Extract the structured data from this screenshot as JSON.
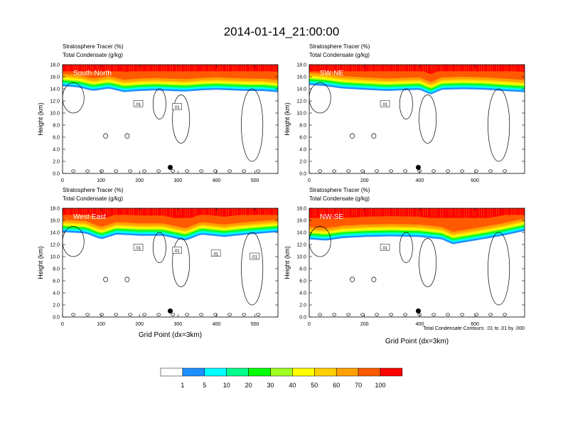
{
  "figure": {
    "title": "2014-01-14_21:00:00",
    "contour_note": "Total Condensate Contours: .01 to .01 by .000"
  },
  "colors": {
    "scale": [
      "#ffffff",
      "#1e8fff",
      "#00ffff",
      "#00ff8c",
      "#00ff00",
      "#a0ff20",
      "#ffff00",
      "#ffd000",
      "#ffa000",
      "#ff5a00",
      "#ff0000"
    ],
    "line": "#000000"
  },
  "chart_data": [
    {
      "type": "heatmap",
      "panel": "South-North",
      "subtitle_1": "Stratosphere Tracer   (%)",
      "subtitle_2": "Total Condensate   (g/kg)",
      "label": "South-North",
      "ylabel": "Height (km)",
      "xlabel": "",
      "xlim": [
        0,
        560
      ],
      "ylim": [
        0,
        18
      ],
      "xticks": [
        0,
        100,
        200,
        300,
        400,
        500
      ],
      "xtick_labels": [
        "0",
        "100",
        "200",
        "300",
        "400",
        "500"
      ],
      "yticks": [
        0,
        2,
        4,
        6,
        8,
        10,
        12,
        14,
        16,
        18
      ],
      "ytick_labels": [
        "0.0",
        "2.0",
        "4.0",
        "6.0",
        "8.0",
        "10.0",
        "12.0",
        "14.0",
        "16.0",
        "18.0"
      ],
      "tropopause_km": [
        [
          0,
          15.6
        ],
        [
          40,
          15.4
        ],
        [
          80,
          14.8
        ],
        [
          120,
          15.2
        ],
        [
          160,
          14.6
        ],
        [
          200,
          14.8
        ],
        [
          240,
          14.9
        ],
        [
          280,
          14.8
        ],
        [
          320,
          14.7
        ],
        [
          360,
          14.9
        ],
        [
          400,
          15.0
        ],
        [
          440,
          14.9
        ],
        [
          480,
          14.8
        ],
        [
          520,
          14.8
        ],
        [
          560,
          14.6
        ]
      ],
      "marker_x": 280,
      "contour_labels": [
        ".01",
        ".01"
      ]
    },
    {
      "type": "heatmap",
      "panel": "SW-NE",
      "subtitle_1": "Stratosphere Tracer   (%)",
      "subtitle_2": "Total Condensate   (g/kg)",
      "label": "SW-NE",
      "ylabel": "Height (km)",
      "xlabel": "",
      "xlim": [
        0,
        780
      ],
      "ylim": [
        0,
        18
      ],
      "xticks": [
        0,
        200,
        400,
        600
      ],
      "xtick_labels": [
        "0",
        "200",
        "400",
        "600"
      ],
      "yticks": [
        0,
        2,
        4,
        6,
        8,
        10,
        12,
        14,
        16,
        18
      ],
      "ytick_labels": [
        "0.0",
        "2.0",
        "4.0",
        "6.0",
        "8.0",
        "10.0",
        "12.0",
        "14.0",
        "16.0",
        "18.0"
      ],
      "tropopause_km": [
        [
          0,
          15.8
        ],
        [
          60,
          15.6
        ],
        [
          120,
          15.2
        ],
        [
          200,
          15.0
        ],
        [
          280,
          14.8
        ],
        [
          340,
          14.9
        ],
        [
          400,
          15.0
        ],
        [
          440,
          14.2
        ],
        [
          480,
          15.0
        ],
        [
          560,
          15.1
        ],
        [
          640,
          15.0
        ],
        [
          700,
          14.8
        ],
        [
          780,
          14.6
        ]
      ],
      "marker_x": 395,
      "contour_labels": [
        ".01"
      ]
    },
    {
      "type": "heatmap",
      "panel": "West-East",
      "subtitle_1": "Stratosphere Tracer   (%)",
      "subtitle_2": "Total Condensate   (g/kg)",
      "label": "West-East",
      "ylabel": "Height (km)",
      "xlabel": "Grid Point (dx=3km)",
      "xlim": [
        0,
        560
      ],
      "ylim": [
        0,
        18
      ],
      "xticks": [
        0,
        100,
        200,
        300,
        400,
        500
      ],
      "xtick_labels": [
        "0",
        "100",
        "200",
        "300",
        "400",
        "500"
      ],
      "yticks": [
        0,
        2,
        4,
        6,
        8,
        10,
        12,
        14,
        16,
        18
      ],
      "ytick_labels": [
        "0.0",
        "2.0",
        "4.0",
        "6.0",
        "8.0",
        "10.0",
        "12.0",
        "14.0",
        "16.0",
        "18.0"
      ],
      "tropopause_km": [
        [
          0,
          15.2
        ],
        [
          60,
          15.0
        ],
        [
          100,
          14.0
        ],
        [
          140,
          14.8
        ],
        [
          200,
          14.6
        ],
        [
          260,
          14.6
        ],
        [
          320,
          13.8
        ],
        [
          360,
          14.8
        ],
        [
          420,
          14.4
        ],
        [
          480,
          14.8
        ],
        [
          560,
          15.2
        ]
      ],
      "marker_x": 280,
      "contour_labels": [
        ".01",
        ".01",
        ".01",
        ".01"
      ]
    },
    {
      "type": "heatmap",
      "panel": "NW-SE",
      "subtitle_1": "Stratosphere Tracer   (%)",
      "subtitle_2": "Total Condensate   (g/kg)",
      "label": "NW-SE",
      "ylabel": "Height (km)",
      "xlabel": "Grid Point (dx=3km)",
      "xlim": [
        0,
        780
      ],
      "ylim": [
        0,
        18
      ],
      "xticks": [
        0,
        200,
        400,
        600
      ],
      "xtick_labels": [
        "0",
        "200",
        "400",
        "600"
      ],
      "yticks": [
        0,
        2,
        4,
        6,
        8,
        10,
        12,
        14,
        16,
        18
      ],
      "ytick_labels": [
        "0.0",
        "2.0",
        "4.0",
        "6.0",
        "8.0",
        "10.0",
        "12.0",
        "14.0",
        "16.0",
        "18.0"
      ],
      "tropopause_km": [
        [
          0,
          14.0
        ],
        [
          60,
          13.8
        ],
        [
          120,
          14.2
        ],
        [
          200,
          14.4
        ],
        [
          300,
          14.5
        ],
        [
          400,
          14.4
        ],
        [
          480,
          14.0
        ],
        [
          520,
          13.2
        ],
        [
          600,
          13.8
        ],
        [
          700,
          14.6
        ],
        [
          780,
          15.4
        ]
      ],
      "marker_x": 395,
      "contour_labels": [
        ".01"
      ]
    }
  ],
  "colorbar": {
    "labels": [
      "1",
      "5",
      "10",
      "20",
      "30",
      "40",
      "50",
      "60",
      "70",
      "100"
    ]
  }
}
